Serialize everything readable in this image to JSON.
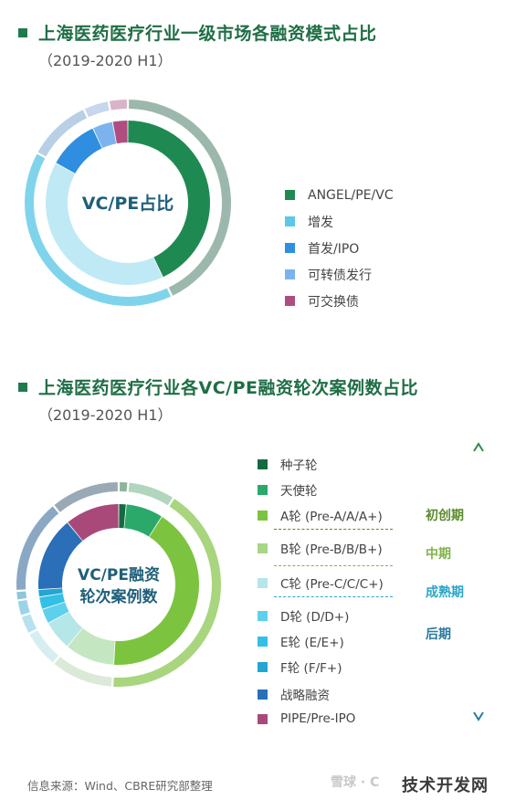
{
  "section1": {
    "title": "上海医药医疗行业一级市场各融资模式占比",
    "subtitle": "（2019-2020 H1）"
  },
  "section2": {
    "title": "上海医药医疗行业各VC/PE融资轮次案例数占比",
    "subtitle": "（2019-2020 H1）"
  },
  "chart_data": [
    {
      "type": "pie",
      "center_label": "VC/PE占比",
      "categories": [
        "ANGEL/PE/VC",
        "增发",
        "首发/IPO",
        "可转债发行",
        "可交换债"
      ],
      "values": [
        43,
        40,
        10,
        4,
        3
      ],
      "inner_values": [
        43,
        40,
        10,
        4,
        3
      ],
      "colors": [
        "#1e8a52",
        "#5ac8e6",
        "#2f8ee0",
        "#7cb3ef",
        "#b04d80"
      ],
      "inner_colors": [
        "#1e8a52",
        "#bfe9f5",
        "#2f8ee0",
        "#7cb3ef",
        "#b04d80"
      ],
      "outer_colors": [
        "#9cb8ac",
        "#7fd4ec",
        "#b9cfe6",
        "#c6d7ee",
        "#d9b4c9"
      ]
    },
    {
      "type": "pie",
      "center_label": [
        "VC/PE融资",
        "轮次案例数"
      ],
      "categories": [
        "种子轮",
        "天使轮",
        "A轮 (Pre-A/A/A+)",
        "B轮 (Pre-B/B/B+)",
        "C轮 (Pre-C/C/C+)",
        "D轮 (D/D+)",
        "E轮 (E/E+)",
        "F轮 (F/F+)",
        "战略融资",
        "PIPE/Pre-IPO"
      ],
      "values": [
        1.5,
        7.5,
        42,
        10,
        6,
        3,
        2.5,
        1.5,
        15,
        11
      ],
      "inner_values": [
        1.5,
        7.5,
        42,
        10,
        6,
        3,
        2.5,
        1.5,
        15,
        11
      ],
      "colors": [
        "#146b3f",
        "#2aa96a",
        "#7cc43f",
        "#a6d686",
        "#b5e6e8",
        "#5fd0ec",
        "#34bfe6",
        "#22a6d2",
        "#2a6fb8",
        "#a8497a"
      ],
      "inner_colors": [
        "#146b3f",
        "#2aa96a",
        "#7cc43f",
        "#c4e6c1",
        "#b5e6e8",
        "#5fd0ec",
        "#34bfe6",
        "#22a6d2",
        "#2a6fb8",
        "#a8497a"
      ],
      "outer_colors": [
        "#8eb59c",
        "#b0d6bd",
        "#a8d57e",
        "#dbe9d8",
        "#d6eef0",
        "#b7e1ee",
        "#9bd4e9",
        "#8ec7dc",
        "#8aa8c4",
        "#9aa9b6"
      ],
      "stages": [
        {
          "label": "初创期",
          "color": "#5a8a2a"
        },
        {
          "label": "中期",
          "color": "#7fb34a"
        },
        {
          "label": "成熟期",
          "color": "#2aa6c9"
        },
        {
          "label": "后期",
          "color": "#2a7aa0"
        }
      ]
    }
  ],
  "footer": {
    "source": "信息来源：Wind、CBRE研究部整理",
    "watermark_left": "雪球 · C",
    "watermark_right": "技术开发网"
  }
}
